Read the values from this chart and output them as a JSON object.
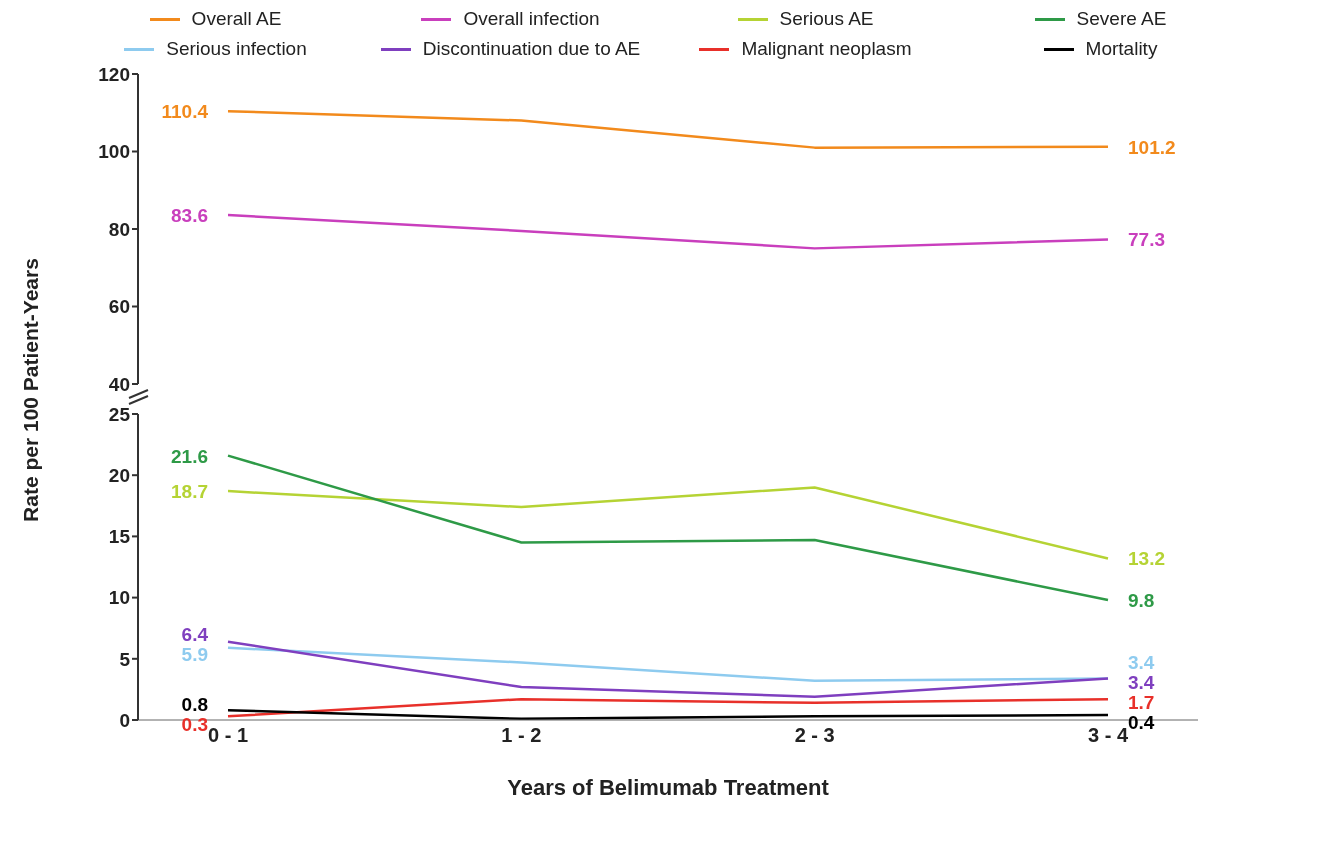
{
  "chart_data": [
    {
      "type": "line",
      "ylabel": "Rate per 100 Patient-Years",
      "ylim": [
        40,
        120
      ],
      "yticks": [
        40,
        60,
        80,
        100,
        120
      ],
      "tick_labels": "y",
      "legend": "top",
      "marker": "none",
      "grid": false,
      "series": [
        {
          "name": "Overall AE",
          "color": "#f28a1c",
          "values": [
            110.4,
            108,
            101,
            101.2
          ],
          "value_labels": [
            "110.4",
            null,
            null,
            "101.2"
          ]
        },
        {
          "name": "Overall infection",
          "color": "#c93fbd",
          "values": [
            83.6,
            79.5,
            75,
            77.3
          ],
          "value_labels": [
            "83.6",
            null,
            null,
            "77.3"
          ]
        }
      ]
    },
    {
      "type": "line",
      "xlabel": "Years of Belimumab Treatment",
      "legend": "top",
      "categories": [
        "0 - 1",
        "1 - 2",
        "2 - 3",
        "3 - 4"
      ],
      "ylim": [
        0,
        25
      ],
      "yticks": [
        0,
        5,
        10,
        15,
        20,
        25
      ],
      "marker": "none",
      "grid": false,
      "series": [
        {
          "name": "Serious AE",
          "color": "#b5d334",
          "values": [
            18.7,
            17.4,
            19,
            13.2
          ],
          "value_labels": [
            "18.7",
            null,
            null,
            "13.2"
          ]
        },
        {
          "name": "Severe AE",
          "color": "#2e9a47",
          "values": [
            21.6,
            14.5,
            14.7,
            9.8
          ],
          "value_labels": [
            "21.6",
            null,
            null,
            "9.8"
          ]
        },
        {
          "name": "Serious infection",
          "color": "#8ecbef",
          "values": [
            5.9,
            4.7,
            3.2,
            3.4
          ],
          "value_labels": [
            "5.9",
            null,
            null,
            "3.4"
          ]
        },
        {
          "name": "Discontinuation due to AE",
          "color": "#7f3fbf",
          "values": [
            6.4,
            2.7,
            1.9,
            3.4
          ],
          "value_labels": [
            "6.4",
            null,
            null,
            "3.4"
          ]
        },
        {
          "name": "Malignant neoplasm",
          "color": "#e8302a",
          "values": [
            0.3,
            1.7,
            1.4,
            1.7
          ],
          "value_labels": [
            "0.3",
            null,
            null,
            "1.7"
          ]
        },
        {
          "name": "Mortality",
          "color": "#000000",
          "values": [
            0.8,
            0.1,
            0.3,
            0.4
          ],
          "value_labels": [
            "0.8",
            null,
            null,
            "0.4"
          ]
        }
      ]
    }
  ]
}
